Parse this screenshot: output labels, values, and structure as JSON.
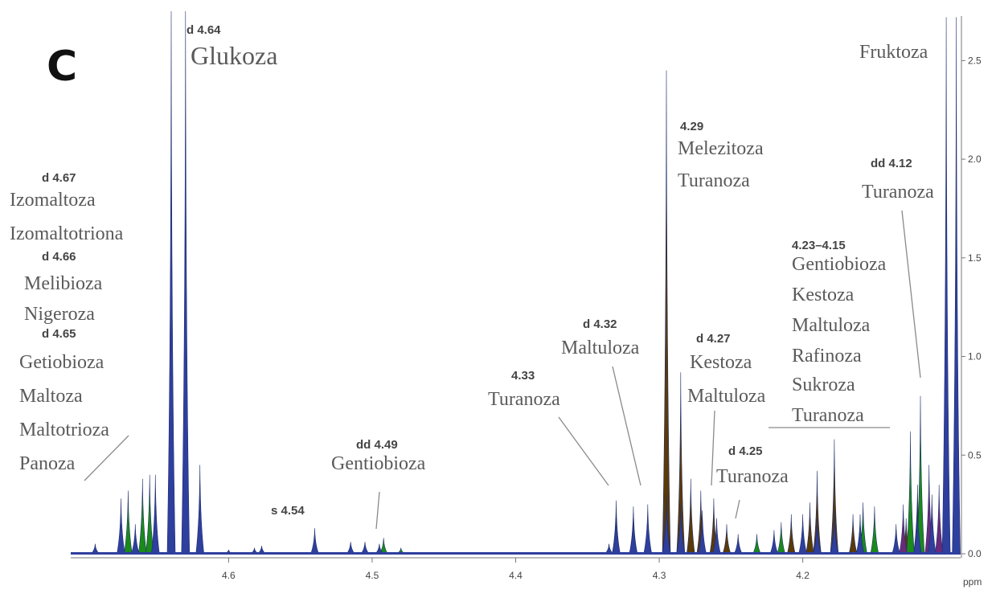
{
  "panel_label": "C",
  "chart_data": {
    "type": "area",
    "title": "",
    "xlabel": "ppm",
    "ylabel": "",
    "x_reversed": true,
    "xlim": [
      4.71,
      4.09
    ],
    "ylim": [
      0,
      2.75
    ],
    "grid": false,
    "x_ticks": [
      {
        "value": 4.6,
        "label": "4.6"
      },
      {
        "value": 4.5,
        "label": "4.5"
      },
      {
        "value": 4.4,
        "label": "4.4"
      },
      {
        "value": 4.3,
        "label": "4.3"
      },
      {
        "value": 4.2,
        "label": "4.2"
      }
    ],
    "y_ticks": [
      {
        "value": 0.0,
        "label": "0.0"
      },
      {
        "value": 0.5,
        "label": "0.5"
      },
      {
        "value": 1.0,
        "label": "1.0"
      },
      {
        "value": 1.5,
        "label": "1.5"
      },
      {
        "value": 2.0,
        "label": "2.0"
      },
      {
        "value": 2.5,
        "label": "2.5"
      }
    ],
    "series": [
      {
        "color": "#5a3a08",
        "peaks": [
          {
            "x": 4.295,
            "y": 2.45
          },
          {
            "x": 4.285,
            "y": 0.92
          },
          {
            "x": 4.278,
            "y": 0.38
          },
          {
            "x": 4.271,
            "y": 0.32
          },
          {
            "x": 4.262,
            "y": 0.28
          },
          {
            "x": 4.253,
            "y": 0.15
          },
          {
            "x": 4.208,
            "y": 0.2
          },
          {
            "x": 4.195,
            "y": 0.26
          },
          {
            "x": 4.19,
            "y": 0.42
          },
          {
            "x": 4.178,
            "y": 0.58
          },
          {
            "x": 4.165,
            "y": 0.2
          },
          {
            "x": 4.128,
            "y": 0.18
          },
          {
            "x": 4.12,
            "y": 0.35
          }
        ]
      },
      {
        "color": "#1a8a1a",
        "peaks": [
          {
            "x": 4.67,
            "y": 0.32
          },
          {
            "x": 4.66,
            "y": 0.38
          },
          {
            "x": 4.655,
            "y": 0.4
          },
          {
            "x": 4.492,
            "y": 0.08
          },
          {
            "x": 4.48,
            "y": 0.03
          },
          {
            "x": 4.33,
            "y": 0.27
          },
          {
            "x": 4.318,
            "y": 0.24
          },
          {
            "x": 4.232,
            "y": 0.1
          },
          {
            "x": 4.215,
            "y": 0.16
          },
          {
            "x": 4.158,
            "y": 0.26
          },
          {
            "x": 4.15,
            "y": 0.24
          },
          {
            "x": 4.125,
            "y": 0.62
          },
          {
            "x": 4.118,
            "y": 0.8
          }
        ]
      },
      {
        "color": "#6a2a7a",
        "peaks": [
          {
            "x": 4.13,
            "y": 0.25
          },
          {
            "x": 4.112,
            "y": 0.45
          },
          {
            "x": 4.105,
            "y": 0.35
          }
        ]
      },
      {
        "color": "#2e3f9e",
        "peaks": [
          {
            "x": 4.693,
            "y": 0.05
          },
          {
            "x": 4.675,
            "y": 0.28
          },
          {
            "x": 4.665,
            "y": 0.15
          },
          {
            "x": 4.651,
            "y": 0.4
          },
          {
            "x": 4.64,
            "y": 2.75
          },
          {
            "x": 4.63,
            "y": 2.75
          },
          {
            "x": 4.62,
            "y": 0.45
          },
          {
            "x": 4.6,
            "y": 0.02
          },
          {
            "x": 4.582,
            "y": 0.03
          },
          {
            "x": 4.577,
            "y": 0.04
          },
          {
            "x": 4.54,
            "y": 0.13
          },
          {
            "x": 4.515,
            "y": 0.06
          },
          {
            "x": 4.505,
            "y": 0.06
          },
          {
            "x": 4.495,
            "y": 0.05
          },
          {
            "x": 4.335,
            "y": 0.05
          },
          {
            "x": 4.33,
            "y": 0.22
          },
          {
            "x": 4.318,
            "y": 0.2
          },
          {
            "x": 4.308,
            "y": 0.25
          },
          {
            "x": 4.295,
            "y": 0.3
          },
          {
            "x": 4.285,
            "y": 0.25
          },
          {
            "x": 4.27,
            "y": 0.22
          },
          {
            "x": 4.26,
            "y": 0.18
          },
          {
            "x": 4.245,
            "y": 0.1
          },
          {
            "x": 4.22,
            "y": 0.12
          },
          {
            "x": 4.2,
            "y": 0.2
          },
          {
            "x": 4.19,
            "y": 0.18
          },
          {
            "x": 4.178,
            "y": 0.22
          },
          {
            "x": 4.16,
            "y": 0.2
          },
          {
            "x": 4.135,
            "y": 0.15
          },
          {
            "x": 4.12,
            "y": 0.25
          },
          {
            "x": 4.11,
            "y": 0.3
          },
          {
            "x": 4.1,
            "y": 2.72
          },
          {
            "x": 4.093,
            "y": 2.72
          }
        ]
      }
    ],
    "annotations": [
      {
        "shift": "d 4.64",
        "compounds": [
          "Glukoza"
        ]
      },
      {
        "shift": "d 4.67",
        "compounds": [
          "Izomaltoza",
          "Izomaltotriona"
        ]
      },
      {
        "shift": "d 4.66",
        "compounds": [
          "Melibioza",
          "Nigeroza"
        ]
      },
      {
        "shift": "d 4.65",
        "compounds": [
          "Getiobioza",
          "Maltoza",
          "Maltotrioza",
          "Panoza"
        ]
      },
      {
        "shift": "s 4.54",
        "compounds": []
      },
      {
        "shift": "dd 4.49",
        "compounds": [
          "Gentiobioza"
        ]
      },
      {
        "shift": "4.33",
        "compounds": [
          "Turanoza"
        ]
      },
      {
        "shift": "d 4.32",
        "compounds": [
          "Maltuloza"
        ]
      },
      {
        "shift": "4.29",
        "compounds": [
          "Melezitoza",
          "Turanoza"
        ]
      },
      {
        "shift": "d 4.27",
        "compounds": [
          "Kestoza",
          "Maltuloza"
        ]
      },
      {
        "shift": "d 4.25",
        "compounds": [
          "Turanoza"
        ]
      },
      {
        "shift": "4.23–4.15",
        "compounds": [
          "Gentiobioza",
          "Kestoza",
          "Maltuloza",
          "Rafinoza",
          "Sukroza",
          "Turanoza"
        ]
      },
      {
        "shift": "dd 4.12",
        "compounds": [
          "Turanoza"
        ]
      },
      {
        "shift": "",
        "compounds": [
          "Fruktoza"
        ]
      }
    ]
  }
}
